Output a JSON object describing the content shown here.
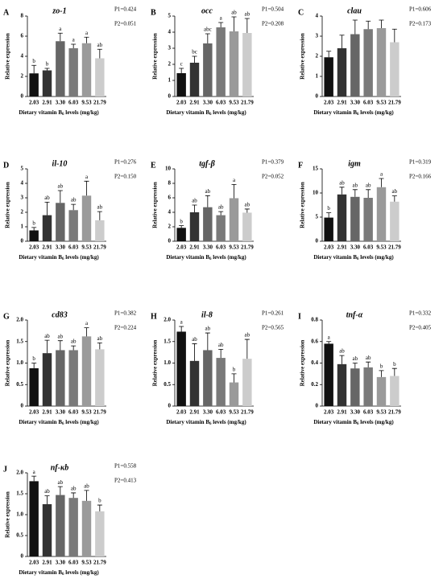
{
  "chart_data": [
    {
      "type": "bar",
      "panel": "A",
      "title": "zo-1",
      "p1": "P1=0.424",
      "p2": "P2=0.051",
      "y_label": "Relative expression",
      "x_label": [
        "Dietary vitamin B",
        "6",
        " levels (mg/kg)"
      ],
      "categories": [
        "2.03",
        "2.91",
        "3.30",
        "6.03",
        "9.53",
        "21.79"
      ],
      "colors": [
        "#111111",
        "#333333",
        "#666666",
        "#7a7a7a",
        "#9a9a9a",
        "#cccccc"
      ],
      "values": [
        2.3,
        2.6,
        5.5,
        4.8,
        5.3,
        3.8
      ],
      "errors": [
        0.8,
        0.2,
        0.8,
        0.4,
        0.6,
        0.9
      ],
      "letters": [
        "b",
        "b",
        "a",
        "a",
        "a",
        "ab"
      ],
      "ylim": [
        0,
        8
      ],
      "yticks": [
        0,
        2,
        4,
        6,
        8
      ]
    },
    {
      "type": "bar",
      "panel": "B",
      "title": "occ",
      "p1": "P1=0.504",
      "p2": "P2=0.208",
      "y_label": "Relative expression",
      "x_label": [
        "Dietary vitamin B",
        "6",
        " levels (mg/kg)"
      ],
      "categories": [
        "2.03",
        "2.91",
        "3.30",
        "6.03",
        "9.53",
        "21.79"
      ],
      "colors": [
        "#111111",
        "#333333",
        "#666666",
        "#7a7a7a",
        "#9a9a9a",
        "#cccccc"
      ],
      "values": [
        1.45,
        2.1,
        3.3,
        4.3,
        4.05,
        3.95
      ],
      "errors": [
        0.3,
        0.4,
        0.6,
        0.3,
        0.9,
        0.9
      ],
      "letters": [
        "c",
        "bc",
        "abc",
        "a",
        "ab",
        "ab"
      ],
      "ylim": [
        0,
        5
      ],
      "yticks": [
        0,
        1,
        2,
        3,
        4,
        5
      ]
    },
    {
      "type": "bar",
      "panel": "C",
      "title": "clau",
      "p1": "P1=0.606",
      "p2": "P2=0.173",
      "y_label": "Relative expression",
      "x_label": [
        "Dietary vitamin B",
        "6",
        " levels (mg/kg)"
      ],
      "categories": [
        "2.03",
        "2.91",
        "3.30",
        "6.03",
        "9.53",
        "21.79"
      ],
      "colors": [
        "#111111",
        "#333333",
        "#666666",
        "#7a7a7a",
        "#9a9a9a",
        "#cccccc"
      ],
      "values": [
        1.95,
        2.4,
        3.1,
        3.35,
        3.4,
        2.7
      ],
      "errors": [
        0.3,
        0.65,
        0.7,
        0.4,
        0.4,
        0.65
      ],
      "ylim": [
        0,
        4
      ],
      "yticks": [
        0,
        1,
        2,
        3,
        4
      ]
    },
    {
      "type": "bar",
      "panel": "D",
      "title": "il-10",
      "p1": "P1=0.276",
      "p2": "P2=0.150",
      "y_label": "Relative expression",
      "x_label": [
        "Dietary vitamin B",
        "6",
        " levels (mg/kg)"
      ],
      "categories": [
        "2.03",
        "2.91",
        "3.30",
        "6.03",
        "9.53",
        "21.79"
      ],
      "colors": [
        "#111111",
        "#333333",
        "#666666",
        "#7a7a7a",
        "#9a9a9a",
        "#cccccc"
      ],
      "values": [
        0.75,
        1.8,
        2.65,
        2.15,
        3.15,
        1.45
      ],
      "errors": [
        0.2,
        0.9,
        0.85,
        0.4,
        1.0,
        0.6
      ],
      "letters": [
        "b",
        "ab",
        "ab",
        "ab",
        "a",
        "ab"
      ],
      "ylim": [
        0,
        5
      ],
      "yticks": [
        0,
        1,
        2,
        3,
        4,
        5
      ]
    },
    {
      "type": "bar",
      "panel": "E",
      "title": "tgf-β",
      "p1": "P1=0.379",
      "p2": "P2=0.052",
      "y_label": "Relative expression",
      "x_label": [
        "Dietary vitamin B",
        "6",
        " levels (mg/kg)"
      ],
      "categories": [
        "2.03",
        "2.91",
        "3.30",
        "6.03",
        "9.53",
        "21.79"
      ],
      "colors": [
        "#111111",
        "#333333",
        "#666666",
        "#7a7a7a",
        "#9a9a9a",
        "#cccccc"
      ],
      "values": [
        1.85,
        4.0,
        4.7,
        3.6,
        5.95,
        3.95
      ],
      "errors": [
        0.3,
        1.0,
        1.6,
        0.5,
        1.9,
        0.5
      ],
      "letters": [
        "b",
        "ab",
        "ab",
        "ab",
        "a",
        "ab"
      ],
      "ylim": [
        0,
        10
      ],
      "yticks": [
        0,
        2,
        4,
        6,
        8,
        10
      ]
    },
    {
      "type": "bar",
      "panel": "F",
      "title": "igm",
      "p1": "P1=0.319",
      "p2": "P2=0.166",
      "y_label": "Relative expression",
      "x_label": [
        "Dietary vitamin B",
        "6",
        " levels (mg/kg)"
      ],
      "categories": [
        "2.03",
        "2.91",
        "3.30",
        "6.03",
        "9.53",
        "21.79"
      ],
      "colors": [
        "#111111",
        "#333333",
        "#666666",
        "#7a7a7a",
        "#9a9a9a",
        "#cccccc"
      ],
      "values": [
        4.9,
        9.7,
        9.2,
        9.0,
        11.2,
        8.2
      ],
      "errors": [
        1.0,
        1.5,
        1.5,
        1.7,
        1.8,
        1.2
      ],
      "letters": [
        "b",
        "ab",
        "ab",
        "ab",
        "a",
        "ab"
      ],
      "ylim": [
        0,
        15
      ],
      "yticks": [
        0,
        5,
        10,
        15
      ]
    },
    {
      "type": "bar",
      "panel": "G",
      "title": "cd83",
      "p1": "P1=0.382",
      "p2": "P2=0.224",
      "y_label": "Relative expression",
      "x_label": [
        "Dietary vitamin B",
        "6",
        " levels (mg/kg)"
      ],
      "categories": [
        "2.03",
        "2.91",
        "3.30",
        "6.03",
        "9.53",
        "21.79"
      ],
      "colors": [
        "#111111",
        "#333333",
        "#666666",
        "#7a7a7a",
        "#9a9a9a",
        "#cccccc"
      ],
      "values": [
        0.88,
        1.23,
        1.3,
        1.3,
        1.62,
        1.32
      ],
      "errors": [
        0.12,
        0.3,
        0.22,
        0.1,
        0.2,
        0.15
      ],
      "letters": [
        "b",
        "ab",
        "ab",
        "ab",
        "a",
        "ab"
      ],
      "ylim": [
        0,
        2
      ],
      "yticks": [
        0,
        0.5,
        {
          "value": 1,
          "label": "1.0"
        },
        1.5,
        {
          "value": 2,
          "label": "2.0"
        }
      ]
    },
    {
      "type": "bar",
      "panel": "H",
      "title": "il-8",
      "p1": "P1=0.261",
      "p2": "P2=0.565",
      "y_label": "Relative expression",
      "x_label": [
        "Dietary vitamin B",
        "6",
        " levels (mg/kg)"
      ],
      "categories": [
        "2.03",
        "2.91",
        "3.30",
        "6.03",
        "9.53",
        "21.79"
      ],
      "colors": [
        "#111111",
        "#333333",
        "#666666",
        "#7a7a7a",
        "#9a9a9a",
        "#cccccc"
      ],
      "values": [
        1.73,
        1.05,
        1.3,
        1.12,
        0.55,
        1.1
      ],
      "errors": [
        0.12,
        0.4,
        0.4,
        0.2,
        0.2,
        0.45
      ],
      "letters": [
        "a",
        "ab",
        "ab",
        "ab",
        "b",
        "ab"
      ],
      "ylim": [
        0,
        2
      ],
      "yticks": [
        0,
        0.5,
        {
          "value": 1,
          "label": "1.0"
        },
        1.5,
        {
          "value": 2,
          "label": "2.0"
        }
      ]
    },
    {
      "type": "bar",
      "panel": "I",
      "title": "tnf-α",
      "p1": "P1=0.332",
      "p2": "P2=0.405",
      "y_label": "Relative expression",
      "x_label": [
        "Dietary vitamin B",
        "6",
        " levels (mg/kg)"
      ],
      "categories": [
        "2.03",
        "2.91",
        "3.30",
        "6.03",
        "9.53",
        "21.79"
      ],
      "colors": [
        "#111111",
        "#333333",
        "#666666",
        "#7a7a7a",
        "#9a9a9a",
        "#cccccc"
      ],
      "values": [
        0.58,
        0.39,
        0.35,
        0.36,
        0.27,
        0.28
      ],
      "errors": [
        0.02,
        0.08,
        0.05,
        0.05,
        0.06,
        0.07
      ],
      "letters": [
        "a",
        "ab",
        "ab",
        "ab",
        "b",
        "b"
      ],
      "ylim": [
        0,
        0.8
      ],
      "yticks": [
        0,
        0.2,
        0.4,
        0.6,
        0.8
      ]
    },
    {
      "type": "bar",
      "panel": "J",
      "title": "nf-κb",
      "p1": "P1=0.558",
      "p2": "P2=0.413",
      "y_label": "Relative expression",
      "x_label": [
        "Dietary vitamin B",
        "6",
        " levels (mg/kg)"
      ],
      "categories": [
        "2.03",
        "2.91",
        "3.30",
        "6.03",
        "9.53",
        "21.79"
      ],
      "colors": [
        "#111111",
        "#333333",
        "#666666",
        "#7a7a7a",
        "#9a9a9a",
        "#cccccc"
      ],
      "values": [
        1.8,
        1.25,
        1.47,
        1.4,
        1.33,
        1.08
      ],
      "errors": [
        0.12,
        0.2,
        0.2,
        0.12,
        0.25,
        0.15
      ],
      "letters": [
        "a",
        "ab",
        "ab",
        "ab",
        "ab",
        "b"
      ],
      "ylim": [
        0,
        2
      ],
      "yticks": [
        0,
        0.5,
        {
          "value": 1,
          "label": "1.0"
        },
        1.5,
        {
          "value": 2,
          "label": "2.0"
        }
      ]
    }
  ]
}
